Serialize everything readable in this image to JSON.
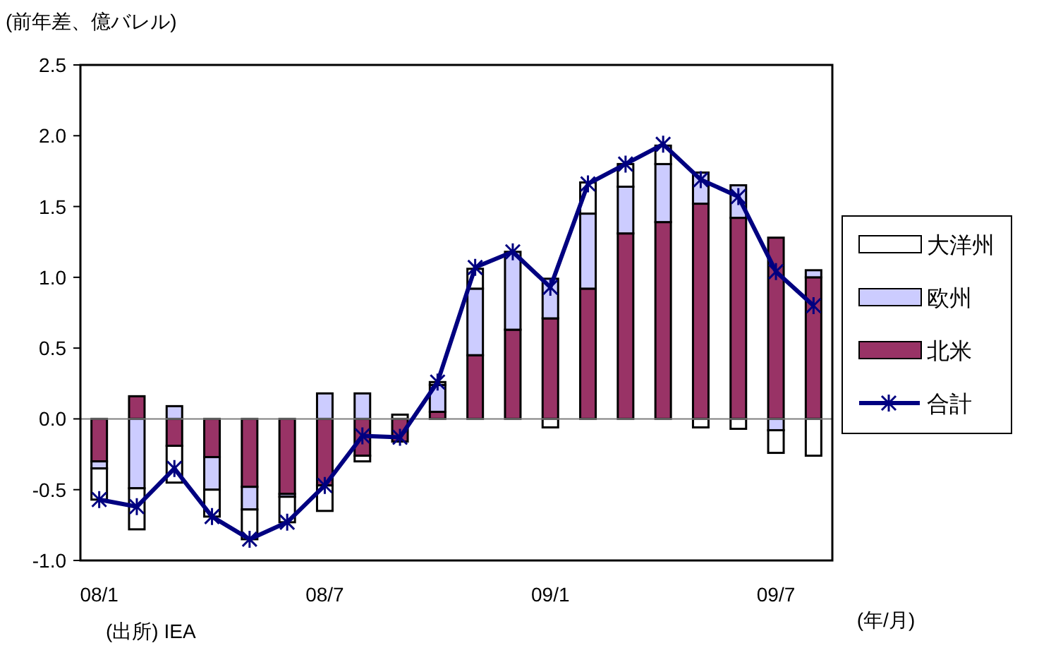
{
  "chart_data": {
    "type": "bar",
    "stacked": true,
    "title": "(前年差、億バレル)",
    "xlabel": "(年/月)",
    "annotations": [
      "(出所) IEA"
    ],
    "categories": [
      "08/1",
      null,
      null,
      null,
      null,
      null,
      "08/7",
      null,
      null,
      null,
      null,
      null,
      "09/1",
      null,
      null,
      null,
      null,
      null,
      "09/7",
      null
    ],
    "series": [
      {
        "name": "北米",
        "color": "#993366",
        "values": [
          -0.3,
          0.16,
          -0.19,
          -0.27,
          -0.48,
          -0.53,
          -0.47,
          -0.26,
          -0.16,
          0.05,
          0.45,
          0.63,
          0.71,
          0.92,
          1.31,
          1.39,
          1.52,
          1.42,
          1.28,
          1.0
        ]
      },
      {
        "name": "欧州",
        "color": "#ccccff",
        "values": [
          -0.05,
          -0.49,
          0.09,
          -0.23,
          -0.16,
          -0.02,
          0.18,
          0.18,
          null,
          0.19,
          0.47,
          0.55,
          0.28,
          0.53,
          0.33,
          0.41,
          0.22,
          0.23,
          -0.08,
          0.05
        ]
      },
      {
        "name": "大洋州",
        "color": "#ffffff",
        "values": [
          -0.22,
          -0.29,
          -0.26,
          -0.19,
          -0.21,
          -0.18,
          -0.18,
          -0.04,
          0.03,
          0.02,
          0.14,
          0,
          -0.06,
          0.22,
          0.16,
          0.13,
          -0.06,
          -0.07,
          -0.16,
          -0.26
        ]
      },
      {
        "name": "合計",
        "type": "line",
        "color": "#000080",
        "marker": "cross",
        "values": [
          -0.57,
          -0.62,
          -0.35,
          -0.69,
          -0.85,
          -0.73,
          -0.47,
          -0.12,
          -0.13,
          0.26,
          1.07,
          1.18,
          0.93,
          1.66,
          1.8,
          1.94,
          1.69,
          1.57,
          1.04,
          0.8
        ]
      }
    ],
    "ylim": [
      -1.0,
      2.5
    ],
    "yticks": [
      {
        "value": -1,
        "label": "-1.0"
      },
      {
        "value": -0.5,
        "label": "-0.5"
      },
      {
        "value": 0,
        "label": "0.0"
      },
      {
        "value": 0.5,
        "label": "0.5"
      },
      {
        "value": 1,
        "label": "1.0"
      },
      {
        "value": 1.5,
        "label": "1.5"
      },
      {
        "value": 2,
        "label": "2.0"
      },
      {
        "value": 2.5,
        "label": "2.5"
      }
    ],
    "ref_lines": [
      {
        "axis": "y",
        "value": 0,
        "color": "#808080"
      }
    ],
    "grid": false,
    "legend": "right"
  }
}
